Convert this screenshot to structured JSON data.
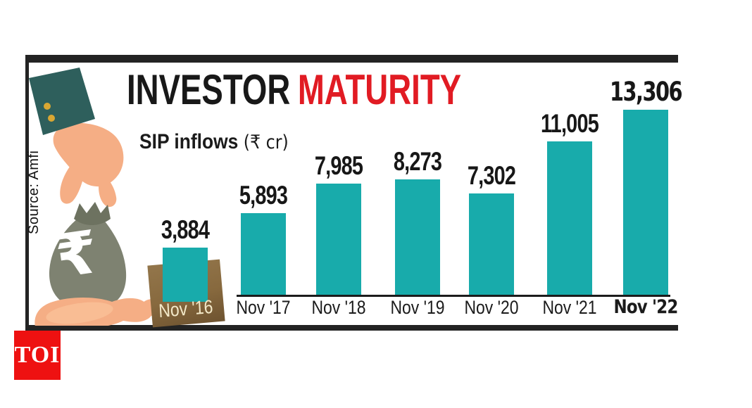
{
  "logo": {
    "text": "TOI",
    "bg_color": "#ee1111",
    "text_color": "#ffffff"
  },
  "source_note": "Source: Amfi",
  "header": {
    "title_black": "INVESTOR",
    "title_red": "MATURITY",
    "red_color": "#e11b23"
  },
  "subtitle": {
    "label": "SIP inflows",
    "unit": "(₹ cr)"
  },
  "chart_data": {
    "type": "bar",
    "title": "INVESTOR MATURITY",
    "ylabel": "SIP inflows (₹ cr)",
    "categories": [
      "Nov '16",
      "Nov '17",
      "Nov '18",
      "Nov '19",
      "Nov '20",
      "Nov '21",
      "Nov '22"
    ],
    "values": [
      3884,
      5893,
      7985,
      8273,
      7302,
      11005,
      13306
    ],
    "value_labels": [
      "3,884",
      "5,893",
      "7,985",
      "8,273",
      "7,302",
      "11,005",
      "13,306"
    ],
    "bar_color": "#18abab",
    "emphasized_index": 6,
    "first_label_color": "#f3e9c9",
    "axis_line_color": "#1c1c1c",
    "grid": false,
    "legend": false,
    "source": "Amfi"
  },
  "illustration": {
    "bag_symbol": "₹",
    "sleeve_color": "#2e5f5c",
    "button_color": "#d9a733",
    "skin_color": "#f5ae85",
    "skin_light": "#f9bd94",
    "bag_color": "#7e8271",
    "bag_dark": "#6d7260",
    "basket_color": "#87693e"
  }
}
